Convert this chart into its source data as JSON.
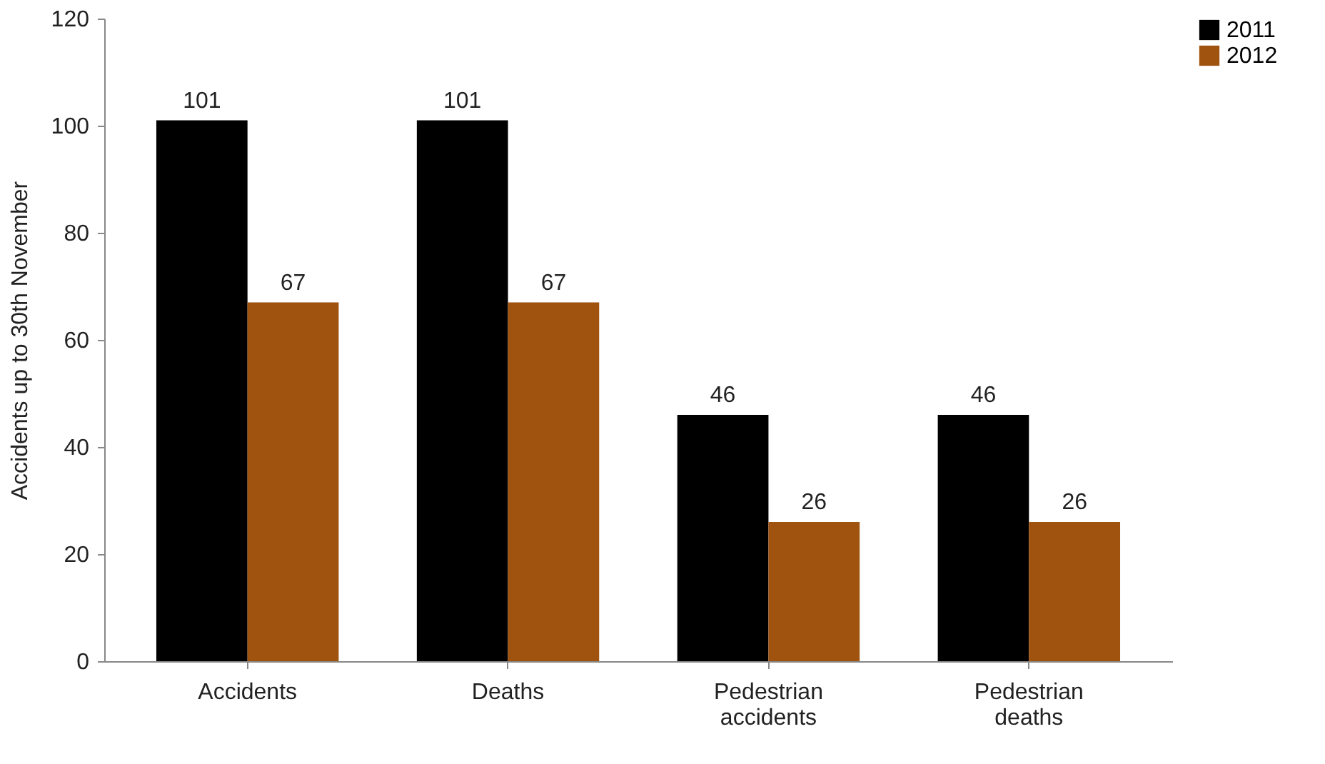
{
  "chart_data": {
    "type": "bar",
    "ylabel": "Accidents up to 30th November",
    "categories": [
      "Accidents",
      "Deaths",
      "Pedestrian accidents",
      "Pedestrian deaths"
    ],
    "series": [
      {
        "name": "2011",
        "color": "#000000",
        "values": [
          101,
          101,
          46,
          46
        ]
      },
      {
        "name": "2012",
        "color": "#a0520f",
        "values": [
          67,
          67,
          26,
          26
        ]
      }
    ],
    "ylim": [
      0,
      120
    ],
    "yticks": [
      0,
      20,
      40,
      60,
      80,
      100,
      120
    ],
    "grid": false,
    "legend": "right",
    "data_labels": true
  }
}
